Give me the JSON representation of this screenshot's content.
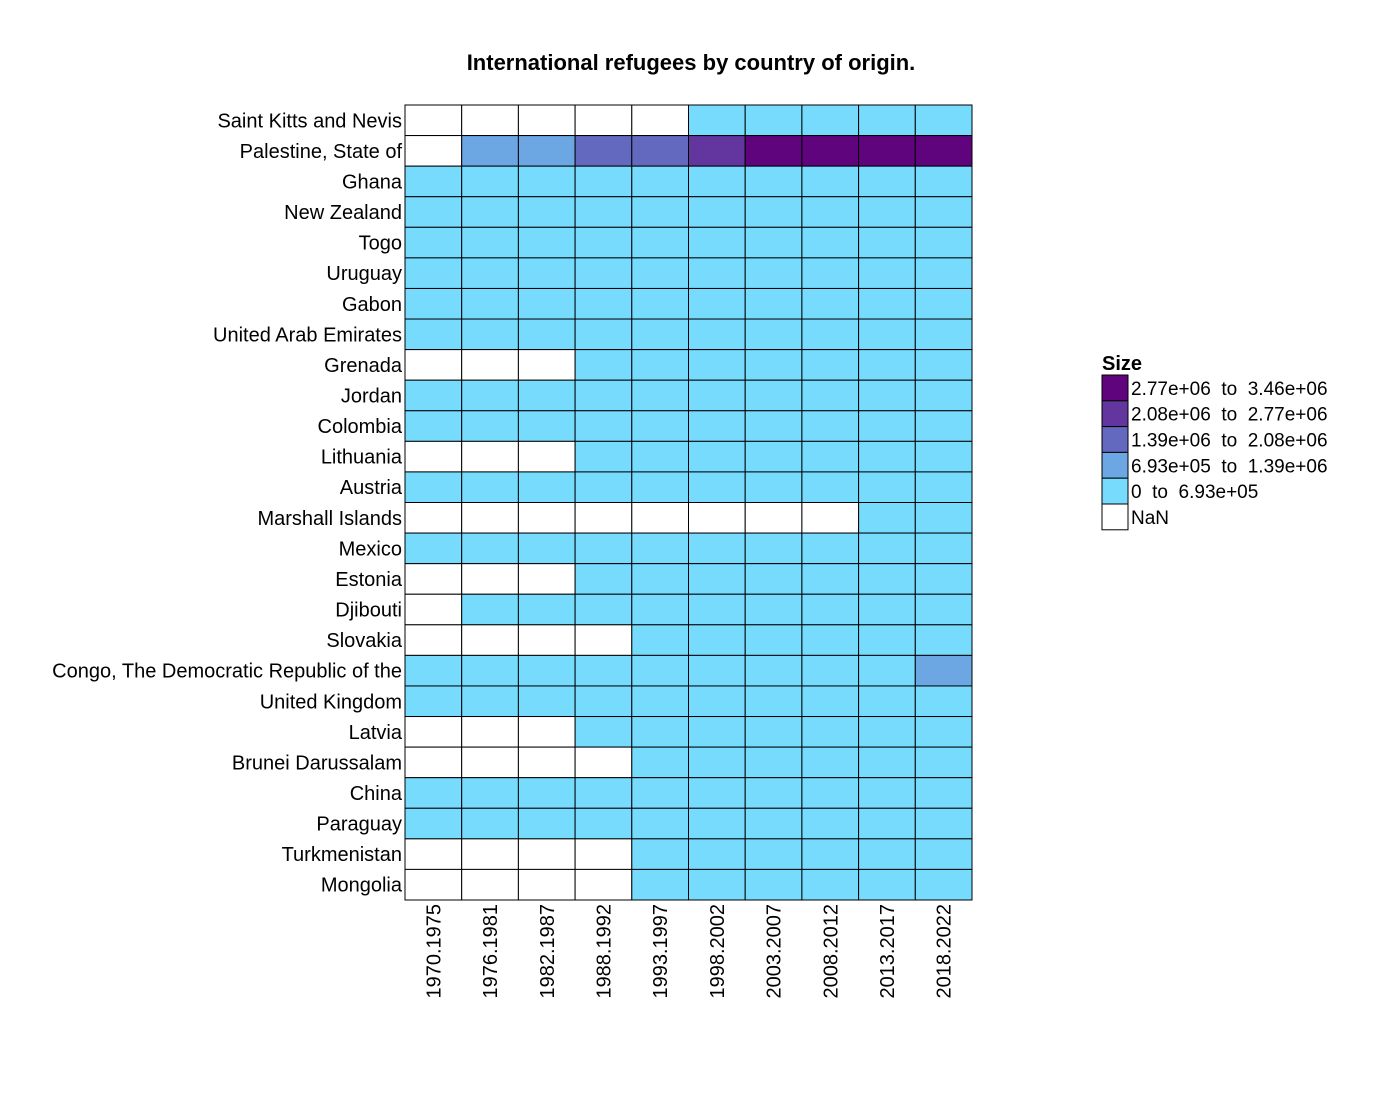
{
  "chart_data": {
    "type": "heatmap",
    "title": "International refugees by country of origin.",
    "xlabel": "",
    "ylabel": "",
    "columns": [
      "1970.1975",
      "1976.1981",
      "1982.1987",
      "1988.1992",
      "1993.1997",
      "1998.2002",
      "2003.2007",
      "2008.2012",
      "2013.2017",
      "2018.2022"
    ],
    "rows": [
      "Saint Kitts and Nevis",
      "Palestine, State of",
      "Ghana",
      "New Zealand",
      "Togo",
      "Uruguay",
      "Gabon",
      "United Arab Emirates",
      "Grenada",
      "Jordan",
      "Colombia",
      "Lithuania",
      "Austria",
      "Marshall Islands",
      "Mexico",
      "Estonia",
      "Djibouti",
      "Slovakia",
      "Congo, The Democratic Republic of the",
      "United Kingdom",
      "Latvia",
      "Brunei Darussalam",
      "China",
      "Paraguay",
      "Turkmenistan",
      "Mongolia"
    ],
    "bins": [
      {
        "label": "0  to  6.93e+05",
        "color": "#76dbfd"
      },
      {
        "label": "6.93e+05  to  1.39e+06",
        "color": "#6ca7e4"
      },
      {
        "label": "1.39e+06  to  2.08e+06",
        "color": "#6469c0"
      },
      {
        "label": "2.08e+06  to  2.77e+06",
        "color": "#62359f"
      },
      {
        "label": "2.77e+06  to  3.46e+06",
        "color": "#5f047d"
      }
    ],
    "nan_label": "NaN",
    "nan_color": "#ffffff",
    "bin_index_matrix": [
      [
        null,
        null,
        null,
        null,
        null,
        0,
        0,
        0,
        0,
        0
      ],
      [
        null,
        1,
        1,
        2,
        2,
        3,
        4,
        4,
        4,
        4
      ],
      [
        0,
        0,
        0,
        0,
        0,
        0,
        0,
        0,
        0,
        0
      ],
      [
        0,
        0,
        0,
        0,
        0,
        0,
        0,
        0,
        0,
        0
      ],
      [
        0,
        0,
        0,
        0,
        0,
        0,
        0,
        0,
        0,
        0
      ],
      [
        0,
        0,
        0,
        0,
        0,
        0,
        0,
        0,
        0,
        0
      ],
      [
        0,
        0,
        0,
        0,
        0,
        0,
        0,
        0,
        0,
        0
      ],
      [
        0,
        0,
        0,
        0,
        0,
        0,
        0,
        0,
        0,
        0
      ],
      [
        null,
        null,
        null,
        0,
        0,
        0,
        0,
        0,
        0,
        0
      ],
      [
        0,
        0,
        0,
        0,
        0,
        0,
        0,
        0,
        0,
        0
      ],
      [
        0,
        0,
        0,
        0,
        0,
        0,
        0,
        0,
        0,
        0
      ],
      [
        null,
        null,
        null,
        0,
        0,
        0,
        0,
        0,
        0,
        0
      ],
      [
        0,
        0,
        0,
        0,
        0,
        0,
        0,
        0,
        0,
        0
      ],
      [
        null,
        null,
        null,
        null,
        null,
        null,
        null,
        null,
        0,
        0
      ],
      [
        0,
        0,
        0,
        0,
        0,
        0,
        0,
        0,
        0,
        0
      ],
      [
        null,
        null,
        null,
        0,
        0,
        0,
        0,
        0,
        0,
        0
      ],
      [
        null,
        0,
        0,
        0,
        0,
        0,
        0,
        0,
        0,
        0
      ],
      [
        null,
        null,
        null,
        null,
        0,
        0,
        0,
        0,
        0,
        0
      ],
      [
        0,
        0,
        0,
        0,
        0,
        0,
        0,
        0,
        0,
        1
      ],
      [
        0,
        0,
        0,
        0,
        0,
        0,
        0,
        0,
        0,
        0
      ],
      [
        null,
        null,
        null,
        0,
        0,
        0,
        0,
        0,
        0,
        0
      ],
      [
        null,
        null,
        null,
        null,
        0,
        0,
        0,
        0,
        0,
        0
      ],
      [
        0,
        0,
        0,
        0,
        0,
        0,
        0,
        0,
        0,
        0
      ],
      [
        0,
        0,
        0,
        0,
        0,
        0,
        0,
        0,
        0,
        0
      ],
      [
        null,
        null,
        null,
        null,
        0,
        0,
        0,
        0,
        0,
        0
      ],
      [
        null,
        null,
        null,
        null,
        0,
        0,
        0,
        0,
        0,
        0
      ]
    ],
    "legend": {
      "title": "Size",
      "placement": "right",
      "order": "high-to-low"
    },
    "grid": true
  }
}
